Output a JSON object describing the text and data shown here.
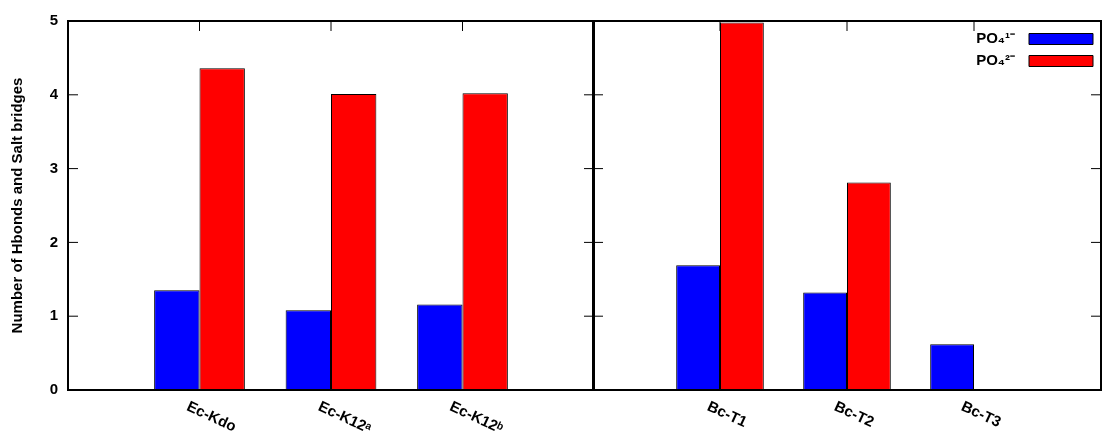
{
  "chart_data": [
    {
      "type": "bar",
      "ylabel": "Number of Hbonds and Salt bridges",
      "categories": [
        null,
        "Ec-Kdo",
        "Ec-K12ᵃ",
        "Ec-K12ᵇ",
        null
      ],
      "ylim": [
        0,
        5
      ],
      "yticks": [
        0,
        1,
        2,
        3,
        4,
        5
      ],
      "legend": false,
      "series": [
        {
          "color": "#0000ff",
          "values": [
            null,
            1.35,
            1.08,
            1.16,
            null
          ]
        },
        {
          "color": "#ff0000",
          "values": [
            null,
            4.36,
            4.01,
            4.02,
            null
          ]
        }
      ]
    },
    {
      "type": "bar",
      "categories": [
        null,
        "Bc-T1",
        "Bc-T2",
        "Bc-T3",
        null
      ],
      "ylim": [
        0,
        5
      ],
      "yticks": [
        0,
        1,
        2,
        3,
        4,
        5
      ],
      "tick_labels": "x",
      "legend": "top right",
      "series": [
        {
          "name": "PO₄¹⁻",
          "color": "#0000ff",
          "values": [
            null,
            1.69,
            1.32,
            0.62,
            null
          ]
        },
        {
          "name": "PO₄²⁻",
          "color": "#ff0000",
          "values": [
            null,
            4.98,
            2.81,
            null,
            null
          ]
        }
      ]
    }
  ]
}
